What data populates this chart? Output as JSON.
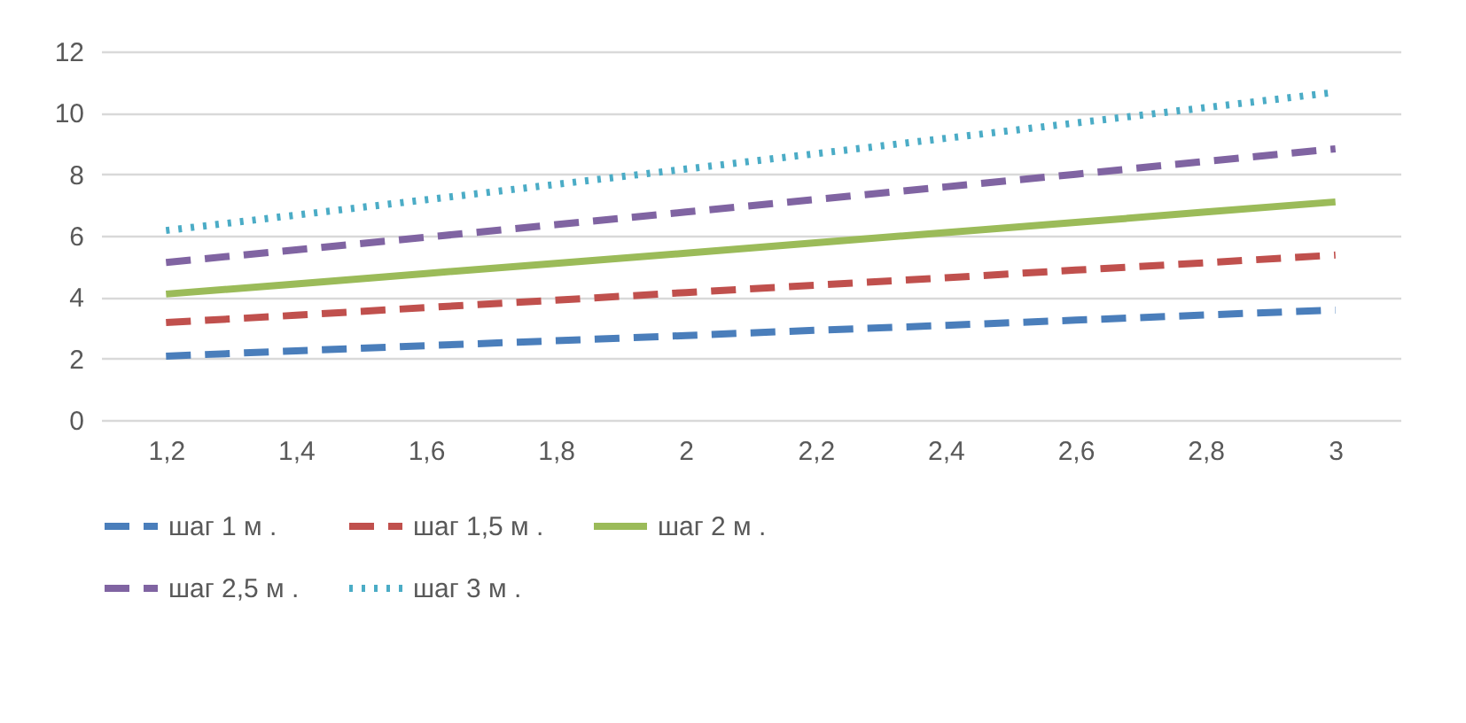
{
  "chart_data": {
    "type": "line",
    "categories": [
      "1,2",
      "1,4",
      "1,6",
      "1,8",
      "2",
      "2,2",
      "2,4",
      "2,6",
      "2,8",
      "3"
    ],
    "series": [
      {
        "name": "шаг 1 м .",
        "color": "#4a7ebb",
        "line_style": "dashed",
        "values": [
          2.08,
          2.25,
          2.42,
          2.58,
          2.75,
          2.92,
          3.08,
          3.25,
          3.42,
          3.58
        ]
      },
      {
        "name": "шаг 1,5 м .",
        "color": "#c0504d",
        "line_style": "dashed",
        "values": [
          3.17,
          3.41,
          3.66,
          3.9,
          4.15,
          4.39,
          4.63,
          4.88,
          5.12,
          5.37
        ]
      },
      {
        "name": "шаг 2 м .",
        "color": "#9bbb59",
        "line_style": "solid",
        "values": [
          4.1,
          4.43,
          4.77,
          5.1,
          5.43,
          5.77,
          6.1,
          6.43,
          6.77,
          7.1
        ]
      },
      {
        "name": "шаг 2,5 м .",
        "color": "#8064a2",
        "line_style": "dashed",
        "values": [
          5.13,
          5.54,
          5.95,
          6.36,
          6.77,
          7.18,
          7.59,
          8.0,
          8.42,
          8.83
        ]
      },
      {
        "name": "шаг 3 м .",
        "color": "#4bacc6",
        "line_style": "dotted",
        "values": [
          6.17,
          6.67,
          7.17,
          7.67,
          8.17,
          8.67,
          9.17,
          9.67,
          10.17,
          10.67
        ]
      }
    ],
    "ylim": [
      0,
      12
    ],
    "yticks": [
      0,
      2,
      4,
      6,
      8,
      10,
      12
    ],
    "grid": "y",
    "legend": "bottom",
    "marker": "none"
  }
}
